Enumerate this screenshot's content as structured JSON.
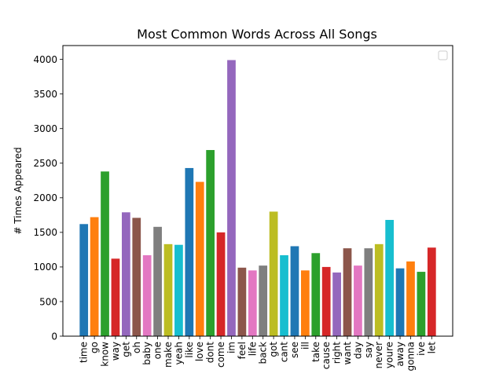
{
  "chart_data": {
    "type": "bar",
    "title": "Most Common Words Across All Songs",
    "xlabel": "",
    "ylabel": "# Times Appeared",
    "ylim": [
      0,
      4200
    ],
    "yticks": [
      0,
      500,
      1000,
      1500,
      2000,
      2500,
      3000,
      3500,
      4000
    ],
    "grid": false,
    "legend": "top-right, empty",
    "categories": [
      "time",
      "go",
      "know",
      "way",
      "get",
      "oh",
      "baby",
      "one",
      "make",
      "yeah",
      "like",
      "love",
      "dont",
      "come",
      "im",
      "feel",
      "life",
      "back",
      "got",
      "cant",
      "see",
      "ill",
      "take",
      "cause",
      "right",
      "want",
      "day",
      "say",
      "never",
      "youre",
      "away",
      "gonna",
      "ive",
      "let"
    ],
    "values": [
      1620,
      1720,
      2380,
      1120,
      1790,
      1710,
      1170,
      1580,
      1330,
      1320,
      2430,
      2230,
      2690,
      1500,
      3990,
      990,
      950,
      1020,
      1800,
      1170,
      1300,
      950,
      1200,
      1000,
      920,
      1270,
      1020,
      1270,
      1330,
      1680,
      980,
      1080,
      930,
      1280
    ],
    "colors": [
      "#1f77b4",
      "#ff7f0e",
      "#2ca02c",
      "#d62728",
      "#9467bd",
      "#8c564b",
      "#e377c2",
      "#7f7f7f",
      "#bcbd22",
      "#17becf"
    ]
  }
}
